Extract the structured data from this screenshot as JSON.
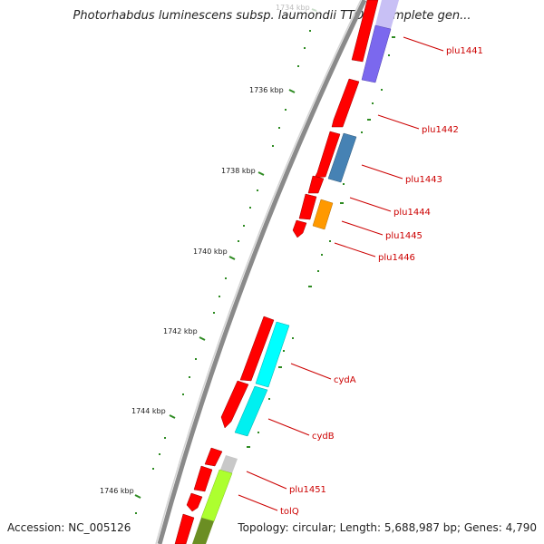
{
  "title": "Photorhabdus luminescens subsp. laumondii TTO1, complete gen...",
  "footer": {
    "accession": "Accession: NC_005126",
    "summary": "Topology: circular; Length: 5,688,987 bp; Genes: 4,790"
  },
  "ticks": [
    {
      "label": "1734 kbp",
      "faded": true
    },
    {
      "label": "1736 kbp"
    },
    {
      "label": "1738 kbp"
    },
    {
      "label": "1740 kbp"
    },
    {
      "label": "1742 kbp"
    },
    {
      "label": "1744 kbp"
    },
    {
      "label": "1746 kbp"
    }
  ],
  "gene_labels": [
    "plu1441",
    "plu1442",
    "plu1443",
    "plu1444",
    "plu1445",
    "plu1446",
    "cydA",
    "cydB",
    "plu1451",
    "tolQ"
  ],
  "colors": {
    "backbone": "#888888",
    "cds": "#ff0000",
    "label": "#cc0000",
    "tick_dots": "#2e8b22",
    "feature_purple": "#7b68ee",
    "feature_steelblue": "#4682b4",
    "feature_orange": "#ff9900",
    "feature_cyan": "#00ffff",
    "feature_lightgray": "#c8c8c8",
    "feature_yellowgreen": "#adff2f",
    "feature_olive": "#6b8e23"
  }
}
